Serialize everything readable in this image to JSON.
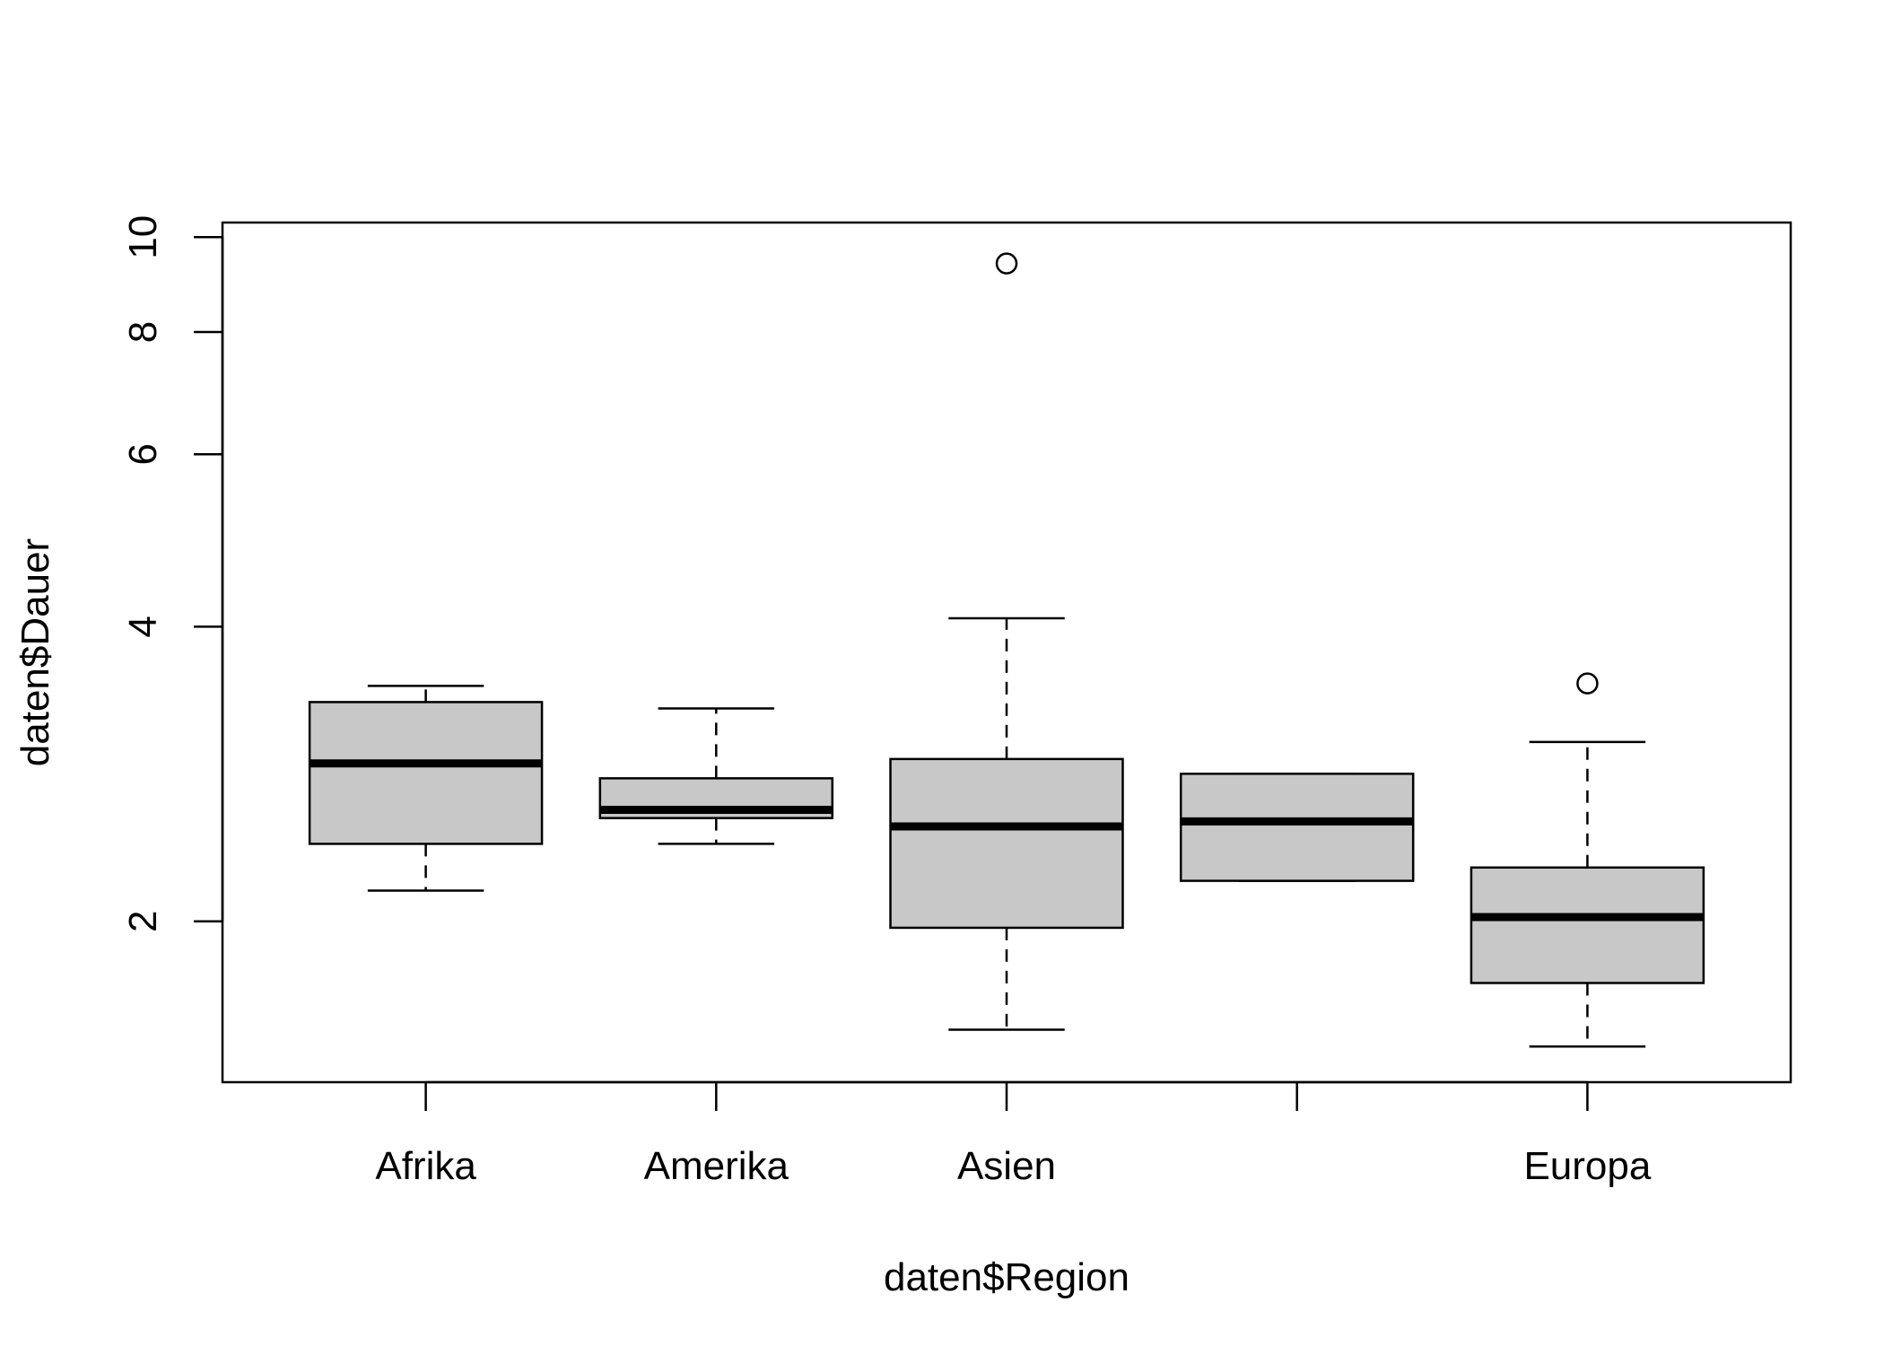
{
  "chart_data": {
    "type": "boxplot",
    "xlabel": "daten$Region",
    "ylabel": "daten$Dauer",
    "y_scale": "log",
    "ylim": [
      1.37,
      10.35
    ],
    "y_ticks": [
      2,
      4,
      6,
      8,
      10
    ],
    "y_tick_labels": [
      "2",
      "4",
      "6",
      "8",
      "10"
    ],
    "categories": [
      "Afrika",
      "Amerika",
      "Asien",
      "",
      "Europa"
    ],
    "boxes": [
      {
        "category": "Afrika",
        "whisker_low": 2.15,
        "q1": 2.4,
        "median": 2.9,
        "q3": 3.35,
        "whisker_high": 3.48,
        "outliers": []
      },
      {
        "category": "Amerika",
        "whisker_low": 2.4,
        "q1": 2.55,
        "median": 2.6,
        "q3": 2.8,
        "whisker_high": 3.3,
        "outliers": []
      },
      {
        "category": "Asien",
        "whisker_low": 1.55,
        "q1": 1.97,
        "median": 2.5,
        "q3": 2.93,
        "whisker_high": 4.08,
        "outliers": [
          9.4
        ]
      },
      {
        "category": "",
        "whisker_low": 2.2,
        "q1": 2.2,
        "median": 2.53,
        "q3": 2.83,
        "whisker_high": 2.83,
        "outliers": []
      },
      {
        "category": "Europa",
        "whisker_low": 1.49,
        "q1": 1.73,
        "median": 2.02,
        "q3": 2.27,
        "whisker_high": 3.05,
        "outliers": [
          3.5
        ]
      }
    ],
    "colors": {
      "box_fill": "#c8c8c8",
      "stroke": "#000000",
      "background": "#ffffff"
    },
    "grid": false,
    "legend": "none"
  }
}
